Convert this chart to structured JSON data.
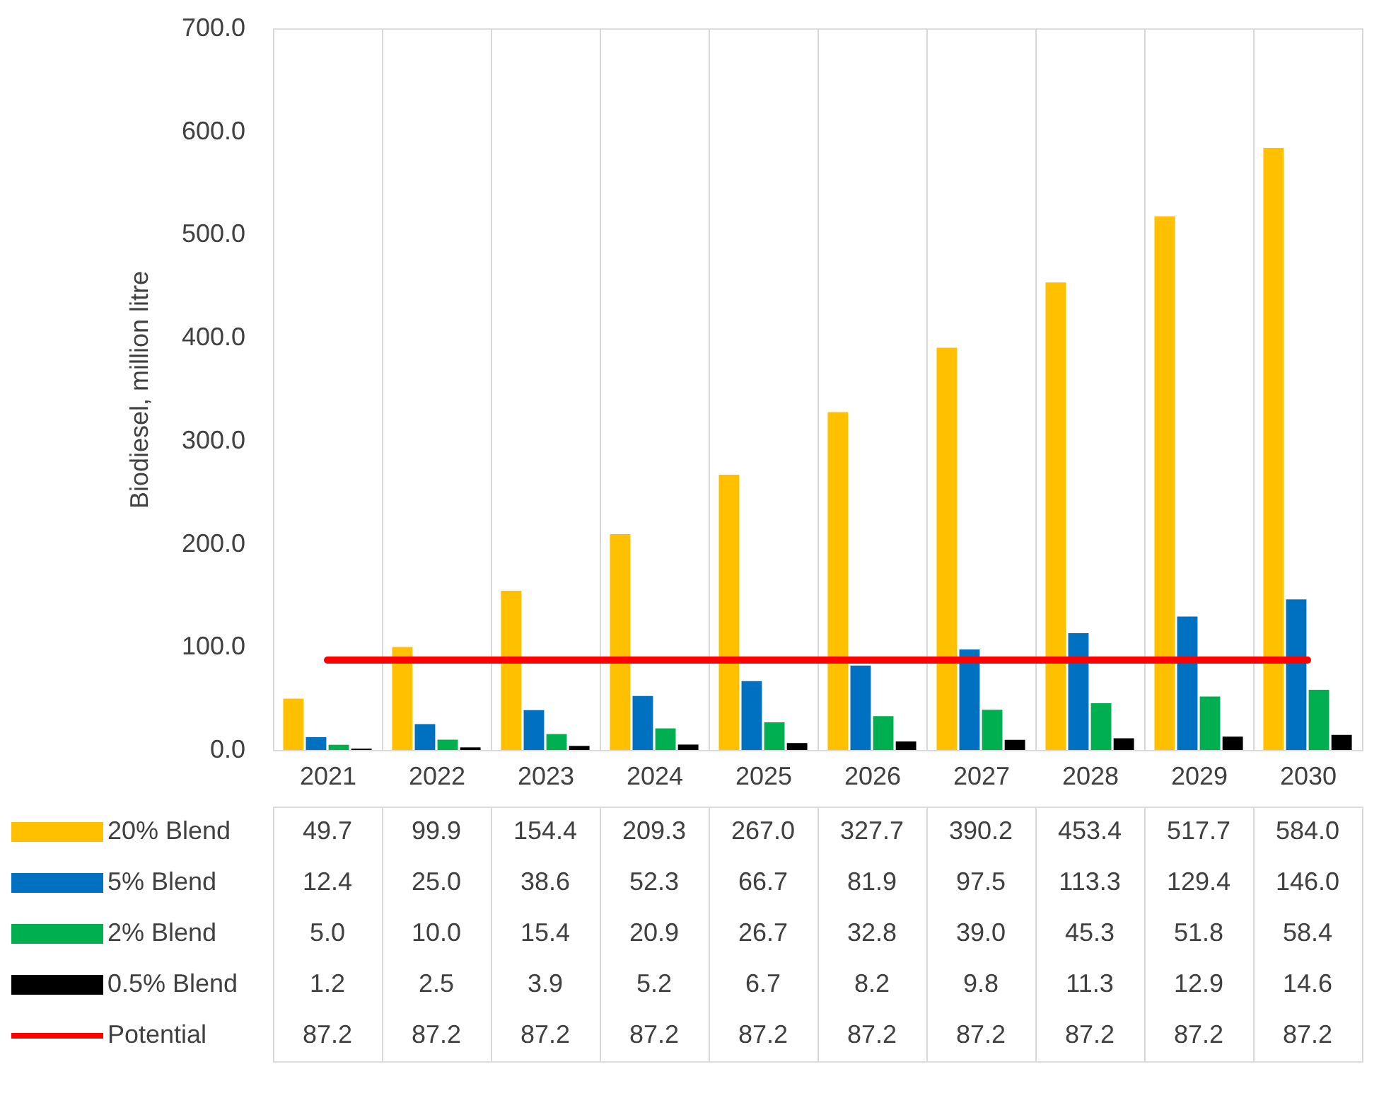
{
  "chart_data": {
    "type": "bar",
    "ylabel": "Biodiesel, million litre",
    "categories": [
      "2021",
      "2022",
      "2023",
      "2024",
      "2025",
      "2026",
      "2027",
      "2028",
      "2029",
      "2030"
    ],
    "series": [
      {
        "name": "20% Blend",
        "color": "#ffc000",
        "values": [
          49.7,
          99.9,
          154.4,
          209.3,
          267.0,
          327.7,
          390.2,
          453.4,
          517.7,
          584.0
        ],
        "value_labels": [
          "49.7",
          "99.9",
          "154.4",
          "209.3",
          "267.0",
          "327.7",
          "390.2",
          "453.4",
          "517.7",
          "584.0"
        ]
      },
      {
        "name": "5% Blend",
        "color": "#0070c0",
        "values": [
          12.4,
          25.0,
          38.6,
          52.3,
          66.7,
          81.9,
          97.5,
          113.3,
          129.4,
          146.0
        ],
        "value_labels": [
          "12.4",
          "25.0",
          "38.6",
          "52.3",
          "66.7",
          "81.9",
          "97.5",
          "113.3",
          "129.4",
          "146.0"
        ]
      },
      {
        "name": "2% Blend",
        "color": "#00b050",
        "values": [
          5.0,
          10.0,
          15.4,
          20.9,
          26.7,
          32.8,
          39.0,
          45.3,
          51.8,
          58.4
        ],
        "value_labels": [
          "5.0",
          "10.0",
          "15.4",
          "20.9",
          "26.7",
          "32.8",
          "39.0",
          "45.3",
          "51.8",
          "58.4"
        ]
      },
      {
        "name": "0.5% Blend",
        "color": "#000000",
        "values": [
          1.2,
          2.5,
          3.9,
          5.2,
          6.7,
          8.2,
          9.8,
          11.3,
          12.9,
          14.6
        ],
        "value_labels": [
          "1.2",
          "2.5",
          "3.9",
          "5.2",
          "6.7",
          "8.2",
          "9.8",
          "11.3",
          "12.9",
          "14.6"
        ]
      },
      {
        "name": "Potential",
        "type": "line",
        "color": "#ff0000",
        "values": [
          87.2,
          87.2,
          87.2,
          87.2,
          87.2,
          87.2,
          87.2,
          87.2,
          87.2,
          87.2
        ],
        "value_labels": [
          "87.2",
          "87.2",
          "87.2",
          "87.2",
          "87.2",
          "87.2",
          "87.2",
          "87.2",
          "87.2",
          "87.2"
        ]
      }
    ],
    "ylim": [
      0,
      700
    ],
    "yticks": [
      {
        "value": 0,
        "label": "0.0"
      },
      {
        "value": 100,
        "label": "100.0"
      },
      {
        "value": 200,
        "label": "200.0"
      },
      {
        "value": 300,
        "label": "300.0"
      },
      {
        "value": 400,
        "label": "400.0"
      },
      {
        "value": 500,
        "label": "500.0"
      },
      {
        "value": 600,
        "label": "600.0"
      },
      {
        "value": 700,
        "label": "700.0"
      }
    ],
    "grid": "x",
    "legend": "bottom"
  }
}
